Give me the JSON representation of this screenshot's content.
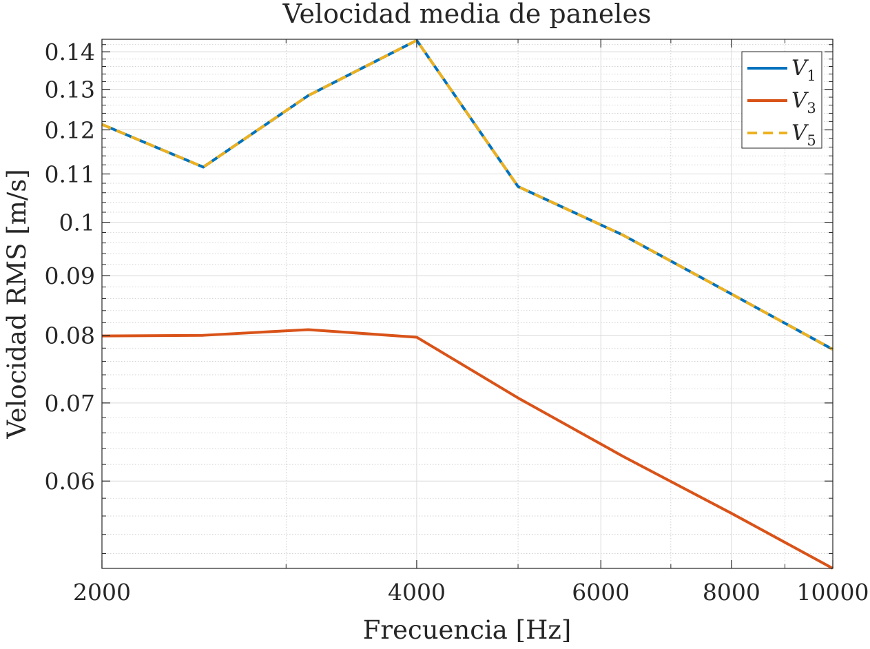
{
  "chart_data": {
    "type": "line",
    "title": "Velocidad media de paneles",
    "xlabel": "Frecuencia [Hz]",
    "ylabel": "Velocidad RMS [m/s]",
    "xscale": "log",
    "yscale": "log",
    "xlim": [
      2000,
      10000
    ],
    "ylim": [
      0.0505,
      0.1435
    ],
    "xticks": [
      2000,
      4000,
      6000,
      8000,
      10000
    ],
    "xtick_labels": [
      "2000",
      "4000",
      "6000",
      "8000",
      "10000"
    ],
    "yticks": [
      0.06,
      0.07,
      0.08,
      0.09,
      0.1,
      0.11,
      0.12,
      0.13,
      0.14
    ],
    "ytick_labels": [
      "0.06",
      "0.07",
      "0.08",
      "0.09",
      "0.1",
      "0.11",
      "0.12",
      "0.13",
      "0.14"
    ],
    "grid": true,
    "minor_grid": true,
    "legend_position": "top-right",
    "x": [
      2000,
      2500,
      3150,
      4000,
      5000,
      6300,
      8000,
      10000
    ],
    "series": [
      {
        "name": "V",
        "subscript": "1",
        "color": "#0072bd",
        "dash": "solid",
        "values": [
          0.1213,
          0.1115,
          0.1284,
          0.1432,
          0.1073,
          0.0975,
          0.0868,
          0.0778
        ]
      },
      {
        "name": "V",
        "subscript": "3",
        "color": "#d95319",
        "dash": "solid",
        "values": [
          0.0799,
          0.08,
          0.0809,
          0.0797,
          0.0707,
          0.063,
          0.0563,
          0.0505
        ]
      },
      {
        "name": "V",
        "subscript": "5",
        "color": "#edb120",
        "dash": "dashed",
        "values": [
          0.1213,
          0.1115,
          0.1284,
          0.1432,
          0.1073,
          0.0975,
          0.0868,
          0.0778
        ]
      }
    ]
  }
}
